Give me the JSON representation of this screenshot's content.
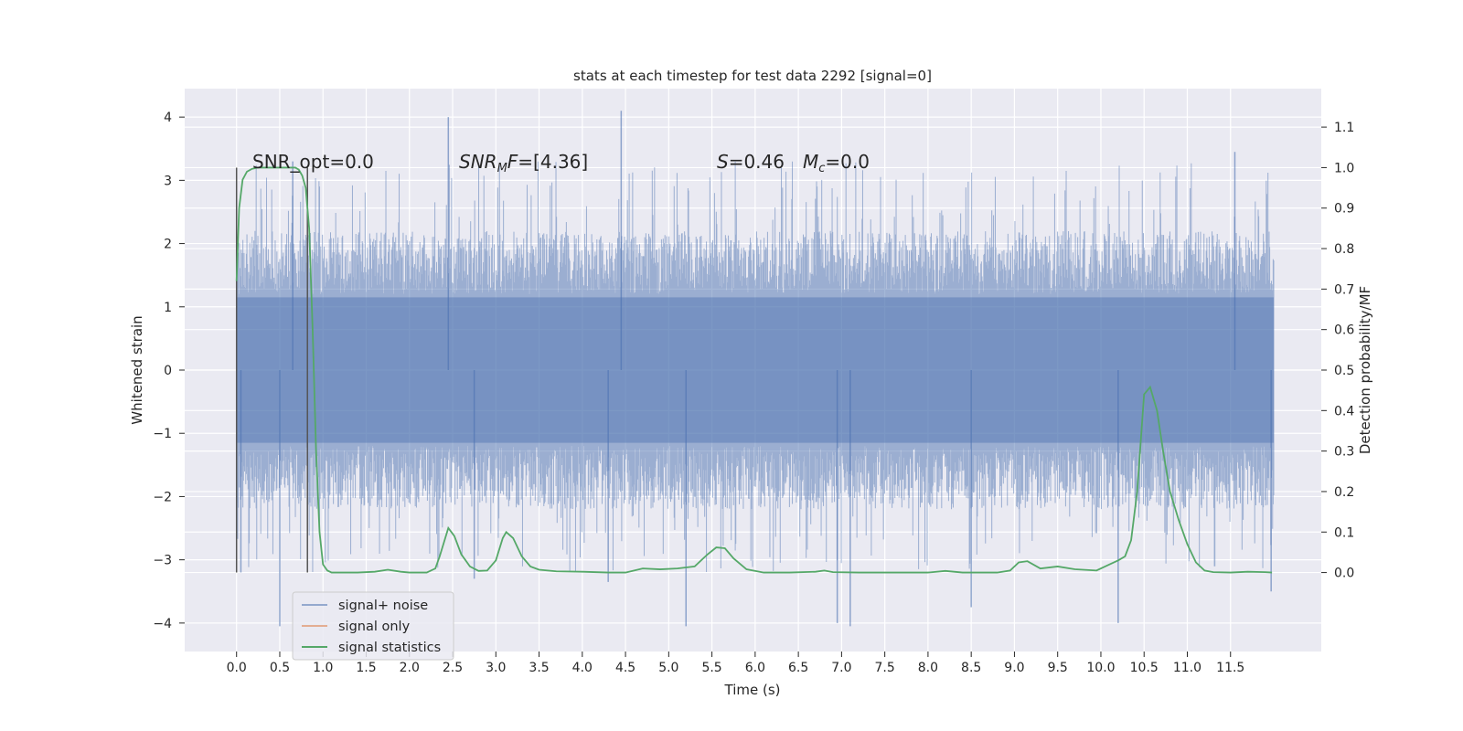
{
  "chart_data": {
    "type": "line",
    "title": "stats at each timestep for test data 2292 [signal=0]",
    "xlabel": "Time (s)",
    "ylabel": "Whitened strain",
    "y2label": "Detection probability/MF",
    "xlim": [
      -0.6,
      12.55
    ],
    "ylim": [
      -4.45,
      4.45
    ],
    "y2lim": [
      -0.195,
      1.195
    ],
    "x_ticks": [
      0.0,
      0.5,
      1.0,
      1.5,
      2.0,
      2.5,
      3.0,
      3.5,
      4.0,
      4.5,
      5.0,
      5.5,
      6.0,
      6.5,
      7.0,
      7.5,
      8.0,
      8.5,
      9.0,
      9.5,
      10.0,
      10.5,
      11.0,
      11.5
    ],
    "x_tick_labels": [
      "0.0",
      "0.5",
      "1.0",
      "1.5",
      "2.0",
      "2.5",
      "3.0",
      "3.5",
      "4.0",
      "4.5",
      "5.0",
      "5.5",
      "6.0",
      "6.5",
      "7.0",
      "7.5",
      "8.0",
      "8.5",
      "9.0",
      "9.5",
      "10.0",
      "10.5",
      "11.0",
      "11.5"
    ],
    "y_ticks": [
      4,
      3,
      2,
      1,
      0,
      -1,
      -2,
      -3,
      -4
    ],
    "y_tick_labels": [
      "4",
      "3",
      "2",
      "1",
      "0",
      "−1",
      "−2",
      "−3",
      "−4"
    ],
    "y2_ticks": [
      1.1,
      1.0,
      0.9,
      0.8,
      0.7,
      0.6,
      0.5,
      0.4,
      0.3,
      0.2,
      0.1,
      0.0
    ],
    "y2_tick_labels": [
      "1.1",
      "1.0",
      "0.9",
      "0.8",
      "0.7",
      "0.6",
      "0.5",
      "0.4",
      "0.3",
      "0.2",
      "0.1",
      "0.0"
    ],
    "grid": true,
    "legend_position": "bottom-left",
    "legend": [
      "signal+ noise",
      "signal only",
      "signal statistics"
    ],
    "colors": {
      "background": "#eaeaf2",
      "grid": "#ffffff",
      "noise": "#4c72b0",
      "signal_only": "#dd8452",
      "statistics": "#55a868",
      "window_lines": "#555555"
    },
    "annotations": {
      "snr_opt": "SNR_opt=0.0",
      "snr_mf": "=[4.36]",
      "s": "=0.46",
      "mc": "=0.0"
    },
    "window_markers_x": [
      0.0,
      0.82
    ],
    "noise_series": {
      "name": "signal+ noise",
      "x_start": 0.0,
      "x_end": 12.0,
      "typical_range": [
        -2.2,
        2.2
      ],
      "spikes": [
        {
          "x": 0.05,
          "y": -3.2
        },
        {
          "x": 0.5,
          "y": -4.05
        },
        {
          "x": 0.65,
          "y": 3.3
        },
        {
          "x": 2.45,
          "y": 4.0
        },
        {
          "x": 2.75,
          "y": -3.3
        },
        {
          "x": 4.45,
          "y": 4.1
        },
        {
          "x": 4.3,
          "y": -3.35
        },
        {
          "x": 5.2,
          "y": -4.05
        },
        {
          "x": 6.95,
          "y": -4.0
        },
        {
          "x": 7.1,
          "y": -4.05
        },
        {
          "x": 8.5,
          "y": -3.75
        },
        {
          "x": 10.2,
          "y": -4.0
        },
        {
          "x": 11.55,
          "y": 3.45
        },
        {
          "x": 11.97,
          "y": -3.5
        }
      ]
    },
    "statistics_series": {
      "name": "signal statistics",
      "x": [
        0.0,
        0.03,
        0.07,
        0.12,
        0.18,
        0.25,
        0.35,
        0.45,
        0.55,
        0.62,
        0.68,
        0.72,
        0.76,
        0.8,
        0.84,
        0.88,
        0.92,
        0.96,
        1.0,
        1.05,
        1.1,
        1.2,
        1.4,
        1.6,
        1.75,
        1.9,
        2.0,
        2.1,
        2.2,
        2.3,
        2.35,
        2.45,
        2.52,
        2.6,
        2.7,
        2.8,
        2.9,
        3.0,
        3.08,
        3.12,
        3.2,
        3.3,
        3.4,
        3.5,
        3.7,
        4.0,
        4.3,
        4.5,
        4.7,
        4.9,
        5.1,
        5.3,
        5.45,
        5.55,
        5.65,
        5.75,
        5.9,
        6.1,
        6.4,
        6.7,
        6.8,
        6.9,
        7.2,
        7.6,
        8.0,
        8.2,
        8.4,
        8.6,
        8.8,
        8.95,
        9.05,
        9.15,
        9.3,
        9.5,
        9.7,
        9.95,
        10.1,
        10.2,
        10.28,
        10.35,
        10.42,
        10.5,
        10.57,
        10.65,
        10.72,
        10.8,
        10.9,
        11.0,
        11.1,
        11.2,
        11.3,
        11.5,
        11.7,
        11.9,
        11.98
      ],
      "values": [
        0.72,
        0.9,
        0.97,
        0.99,
        0.997,
        1.0,
        1.0,
        1.0,
        1.0,
        1.0,
        1.0,
        0.995,
        0.98,
        0.95,
        0.85,
        0.6,
        0.3,
        0.1,
        0.02,
        0.005,
        0.0,
        0.0,
        0.0,
        0.002,
        0.007,
        0.002,
        0.0,
        0.0,
        0.0,
        0.01,
        0.04,
        0.11,
        0.09,
        0.045,
        0.015,
        0.004,
        0.005,
        0.03,
        0.085,
        0.1,
        0.085,
        0.04,
        0.015,
        0.007,
        0.003,
        0.002,
        0.0,
        0.0,
        0.01,
        0.008,
        0.01,
        0.015,
        0.045,
        0.062,
        0.06,
        0.035,
        0.008,
        0.0,
        0.0,
        0.002,
        0.005,
        0.001,
        0.0,
        0.0,
        0.0,
        0.004,
        0.0,
        0.0,
        0.0,
        0.005,
        0.025,
        0.028,
        0.01,
        0.015,
        0.008,
        0.005,
        0.02,
        0.03,
        0.04,
        0.08,
        0.2,
        0.44,
        0.458,
        0.4,
        0.3,
        0.2,
        0.13,
        0.07,
        0.025,
        0.005,
        0.001,
        0.0,
        0.002,
        0.001,
        0.0
      ]
    }
  }
}
